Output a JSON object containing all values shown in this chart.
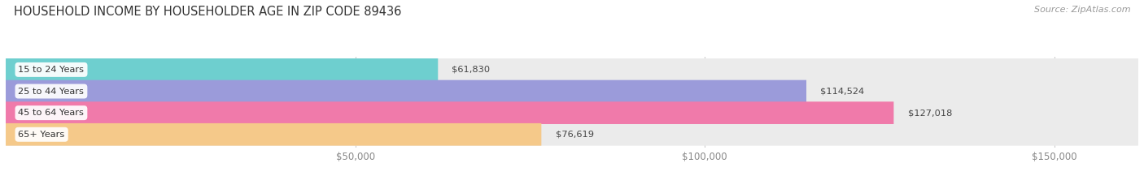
{
  "title": "HOUSEHOLD INCOME BY HOUSEHOLDER AGE IN ZIP CODE 89436",
  "source": "Source: ZipAtlas.com",
  "categories": [
    "15 to 24 Years",
    "25 to 44 Years",
    "45 to 64 Years",
    "65+ Years"
  ],
  "values": [
    61830,
    114524,
    127018,
    76619
  ],
  "bar_colors": [
    "#6ecfcf",
    "#9b9bda",
    "#f07aaa",
    "#f5c98a"
  ],
  "bar_bg_color": "#ebebeb",
  "value_labels": [
    "$61,830",
    "$114,524",
    "$127,018",
    "$76,619"
  ],
  "xlim": [
    0,
    162000
  ],
  "xticks": [
    50000,
    100000,
    150000
  ],
  "xtick_labels": [
    "$50,000",
    "$100,000",
    "$150,000"
  ],
  "title_fontsize": 10.5,
  "source_fontsize": 8,
  "bar_height": 0.52,
  "figsize": [
    14.06,
    2.33
  ],
  "dpi": 100
}
